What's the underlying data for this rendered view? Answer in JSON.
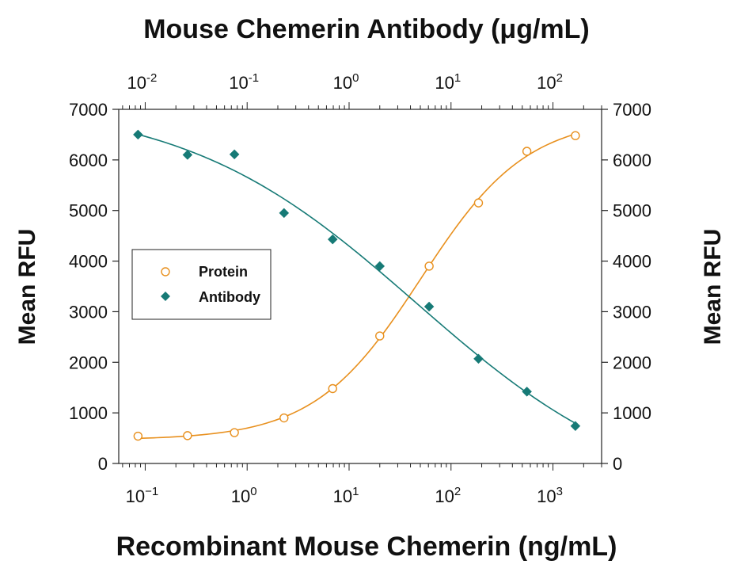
{
  "chart_data": {
    "type": "scatter",
    "title": "Mouse Chemerin Antibody (μg/mL)",
    "xlabel": "Recombinant Mouse Chemerin (ng/mL)",
    "ylabel": "Mean RFU",
    "ylabel_right": "Mean RFU",
    "x_scale": "log",
    "x_ticks": [
      {
        "base": "10",
        "exp": "−1",
        "value": 0.1
      },
      {
        "base": "10",
        "exp": "0",
        "value": 1
      },
      {
        "base": "10",
        "exp": "1",
        "value": 10
      },
      {
        "base": "10",
        "exp": "2",
        "value": 100
      },
      {
        "base": "10",
        "exp": "3",
        "value": 1000
      }
    ],
    "top_x_scale": "log",
    "top_x_ticks": [
      {
        "base": "10",
        "exp": "-2",
        "value": 0.01
      },
      {
        "base": "10",
        "exp": "-1",
        "value": 0.1
      },
      {
        "base": "10",
        "exp": "0",
        "value": 1
      },
      {
        "base": "10",
        "exp": "1",
        "value": 10
      },
      {
        "base": "10",
        "exp": "2",
        "value": 100
      }
    ],
    "y_ticks": [
      "0",
      "1000",
      "2000",
      "3000",
      "4000",
      "5000",
      "6000",
      "7000"
    ],
    "ylim": [
      0,
      7000
    ],
    "legend_position": "center-left",
    "grid": false,
    "series": [
      {
        "name": "Protein",
        "axis": "bottom",
        "marker": "circle-open",
        "color": "#e8901e",
        "x": [
          0.085,
          0.26,
          0.75,
          2.3,
          6.9,
          20,
          61,
          186,
          555,
          1660
        ],
        "y": [
          540,
          550,
          610,
          900,
          1480,
          2520,
          3900,
          5150,
          6170,
          6480
        ]
      },
      {
        "name": "Antibody",
        "axis": "top",
        "marker": "diamond-filled",
        "color": "#167a76",
        "x": [
          0.0085,
          0.026,
          0.075,
          0.23,
          0.69,
          2.0,
          6.1,
          18.6,
          55.5,
          166
        ],
        "y": [
          6500,
          6100,
          6110,
          4950,
          4430,
          3900,
          3100,
          2070,
          1420,
          740
        ]
      }
    ]
  }
}
